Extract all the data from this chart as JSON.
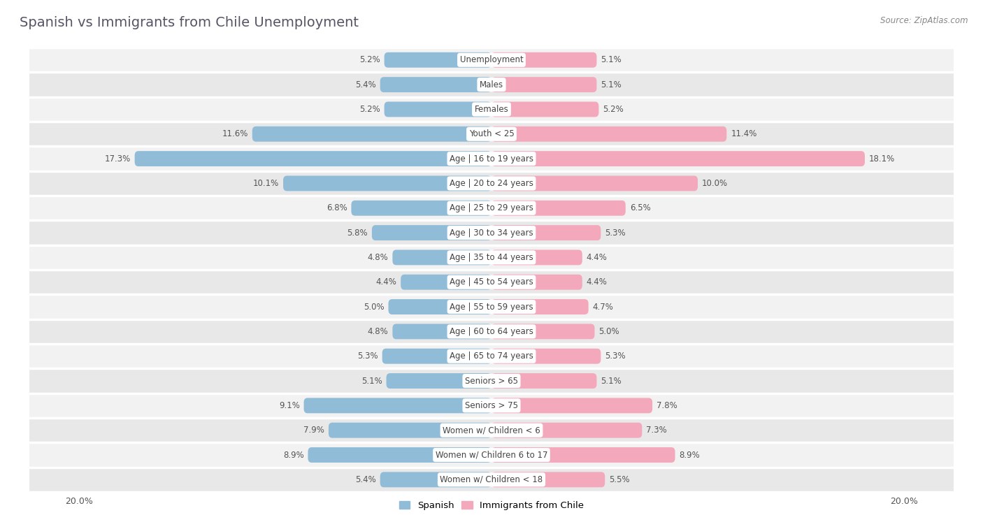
{
  "title": "Spanish vs Immigrants from Chile Unemployment",
  "source": "Source: ZipAtlas.com",
  "categories": [
    "Unemployment",
    "Males",
    "Females",
    "Youth < 25",
    "Age | 16 to 19 years",
    "Age | 20 to 24 years",
    "Age | 25 to 29 years",
    "Age | 30 to 34 years",
    "Age | 35 to 44 years",
    "Age | 45 to 54 years",
    "Age | 55 to 59 years",
    "Age | 60 to 64 years",
    "Age | 65 to 74 years",
    "Seniors > 65",
    "Seniors > 75",
    "Women w/ Children < 6",
    "Women w/ Children 6 to 17",
    "Women w/ Children < 18"
  ],
  "spanish": [
    5.2,
    5.4,
    5.2,
    11.6,
    17.3,
    10.1,
    6.8,
    5.8,
    4.8,
    4.4,
    5.0,
    4.8,
    5.3,
    5.1,
    9.1,
    7.9,
    8.9,
    5.4
  ],
  "chile": [
    5.1,
    5.1,
    5.2,
    11.4,
    18.1,
    10.0,
    6.5,
    5.3,
    4.4,
    4.4,
    4.7,
    5.0,
    5.3,
    5.1,
    7.8,
    7.3,
    8.9,
    5.5
  ],
  "spanish_color": "#91bcd8",
  "chile_color": "#f4a8bc",
  "background_color": "#ffffff",
  "row_color_light": "#f2f2f2",
  "row_color_dark": "#e8e8e8",
  "max_val": 20.0,
  "legend_spanish": "Spanish",
  "legend_chile": "Immigrants from Chile",
  "title_fontsize": 14,
  "label_fontsize": 8.5,
  "value_fontsize": 8.5,
  "bar_height": 0.62
}
